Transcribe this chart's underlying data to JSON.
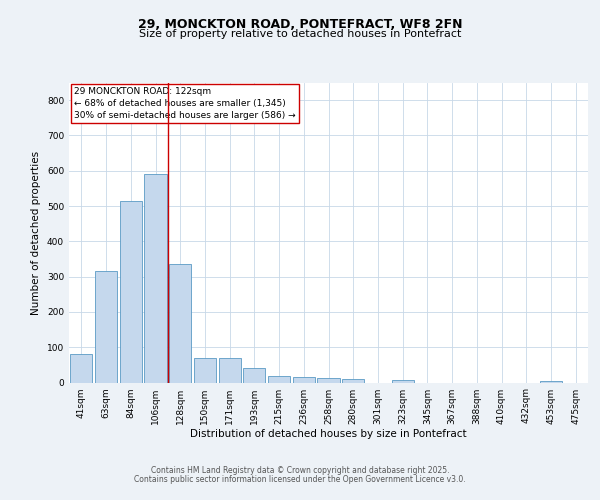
{
  "title1": "29, MONCKTON ROAD, PONTEFRACT, WF8 2FN",
  "title2": "Size of property relative to detached houses in Pontefract",
  "xlabel": "Distribution of detached houses by size in Pontefract",
  "ylabel": "Number of detached properties",
  "categories": [
    "41sqm",
    "63sqm",
    "84sqm",
    "106sqm",
    "128sqm",
    "150sqm",
    "171sqm",
    "193sqm",
    "215sqm",
    "236sqm",
    "258sqm",
    "280sqm",
    "301sqm",
    "323sqm",
    "345sqm",
    "367sqm",
    "388sqm",
    "410sqm",
    "432sqm",
    "453sqm",
    "475sqm"
  ],
  "values": [
    80,
    315,
    515,
    590,
    335,
    70,
    70,
    40,
    18,
    15,
    13,
    10,
    0,
    8,
    0,
    0,
    0,
    0,
    0,
    5,
    0
  ],
  "bar_color": "#c5d8ed",
  "bar_edge_color": "#5a9ac5",
  "vline_index": 4,
  "vline_color": "#cc0000",
  "annotation_text": "29 MONCKTON ROAD: 122sqm\n← 68% of detached houses are smaller (1,345)\n30% of semi-detached houses are larger (586) →",
  "annotation_box_color": "#ffffff",
  "annotation_box_edge_color": "#cc0000",
  "ylim": [
    0,
    850
  ],
  "yticks": [
    0,
    100,
    200,
    300,
    400,
    500,
    600,
    700,
    800
  ],
  "background_color": "#edf2f7",
  "plot_background_color": "#ffffff",
  "footer_line1": "Contains HM Land Registry data © Crown copyright and database right 2025.",
  "footer_line2": "Contains public sector information licensed under the Open Government Licence v3.0.",
  "title_fontsize": 9,
  "subtitle_fontsize": 8,
  "axis_label_fontsize": 7.5,
  "tick_fontsize": 6.5,
  "annotation_fontsize": 6.5,
  "footer_fontsize": 5.5
}
